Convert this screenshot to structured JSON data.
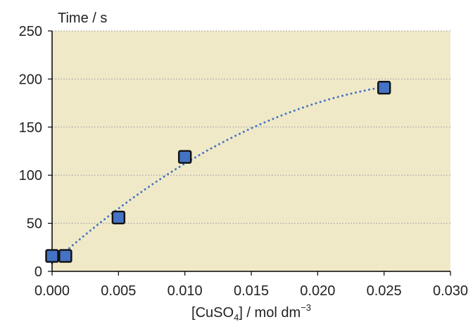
{
  "chart_data": {
    "type": "scatter",
    "ylabel": "Time / s",
    "xlabel": {
      "prefix": "[CuSO",
      "sub": "4",
      "middle": "] / mol dm",
      "sup": "−3"
    },
    "x_ticks": [
      "0.000",
      "0.005",
      "0.010",
      "0.015",
      "0.020",
      "0.025",
      "0.030"
    ],
    "y_ticks": [
      "0",
      "50",
      "100",
      "150",
      "200",
      "250"
    ],
    "xlim": [
      0,
      0.03
    ],
    "ylim": [
      0,
      250
    ],
    "grid": "horizontal-dashed",
    "legend": "none",
    "series": [
      {
        "points": [
          {
            "x": 0.0,
            "y": 16
          },
          {
            "x": 0.001,
            "y": 16
          },
          {
            "x": 0.005,
            "y": 56
          },
          {
            "x": 0.01,
            "y": 119
          },
          {
            "x": 0.025,
            "y": 191
          }
        ],
        "marker": "square",
        "trendline": "polynomial-dotted"
      }
    ],
    "colors": {
      "plot_background": "#efe9c8",
      "marker_fill": "#4472c4",
      "marker_edge": "#111111",
      "trendline": "#4472c4",
      "gridline": "#a9a9a9"
    }
  }
}
